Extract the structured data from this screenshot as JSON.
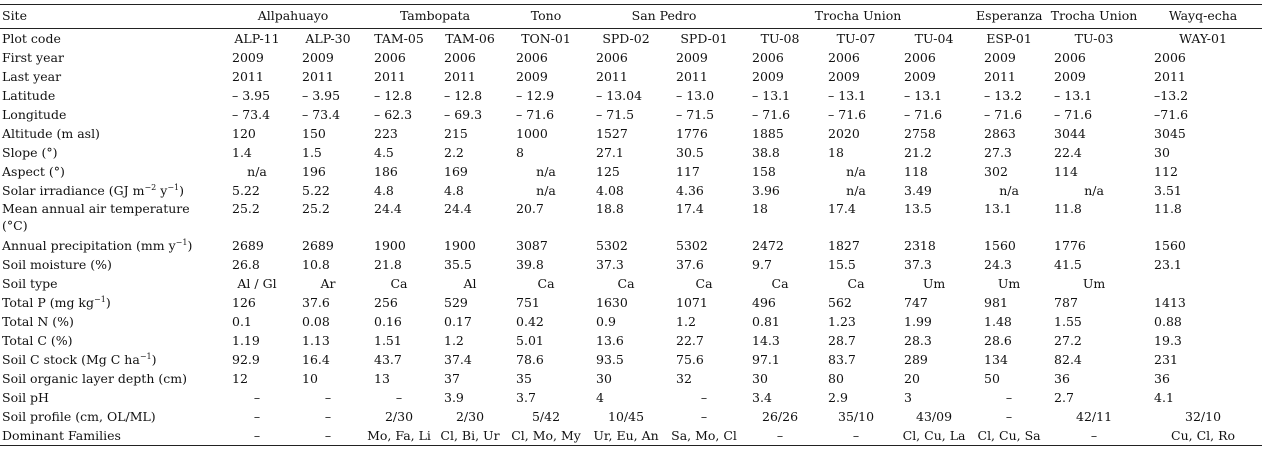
{
  "table": {
    "site_header": "Site",
    "site_groups": [
      {
        "name": "Allpahuayo",
        "span": 2
      },
      {
        "name": "Tambopata",
        "span": 2
      },
      {
        "name": "Tono",
        "span": 1
      },
      {
        "name": "San Pedro",
        "span": 2
      },
      {
        "name": "Trocha Union",
        "span": 3
      },
      {
        "name": "Esperanza",
        "span": 1
      },
      {
        "name": "Trocha Union",
        "span": 1
      },
      {
        "name": "Wayq-echa",
        "span": 1
      }
    ],
    "rows": [
      {
        "label": "Plot code",
        "values": [
          "ALP-11",
          "ALP-30",
          "TAM-05",
          "TAM-06",
          "TON-01",
          "SPD-02",
          "SPD-01",
          "TU-08",
          "TU-07",
          "TU-04",
          "ESP-01",
          "TU-03",
          "WAY-01"
        ]
      },
      {
        "label": "First year",
        "values": [
          "2009",
          "2009",
          "2006",
          "2006",
          "2006",
          "2006",
          "2009",
          "2006",
          "2006",
          "2006",
          "2009",
          "2006",
          "2006"
        ]
      },
      {
        "label": "Last year",
        "values": [
          "2011",
          "2011",
          "2011",
          "2011",
          "2009",
          "2011",
          "2011",
          "2009",
          "2009",
          "2009",
          "2011",
          "2009",
          "2011"
        ]
      },
      {
        "label": "Latitude",
        "values": [
          "– 3.95",
          "– 3.95",
          "– 12.8",
          "– 12.8",
          "– 12.9",
          "– 13.04",
          "– 13.0",
          "– 13.1",
          "– 13.1",
          "– 13.1",
          "– 13.2",
          "– 13.1",
          "–13.2"
        ]
      },
      {
        "label": "Longitude",
        "values": [
          "– 73.4",
          "– 73.4",
          "– 62.3",
          "– 69.3",
          "– 71.6",
          "– 71.5",
          "– 71.5",
          "– 71.6",
          "– 71.6",
          "– 71.6",
          "– 71.6",
          "– 71.6",
          "–71.6"
        ]
      },
      {
        "label": "Altitude (m asl)",
        "values": [
          "120",
          "150",
          "223",
          "215",
          "1000",
          "1527",
          "1776",
          "1885",
          "2020",
          "2758",
          "2863",
          "3044",
          "3045"
        ]
      },
      {
        "label": "Slope (°)",
        "values": [
          "1.4",
          "1.5",
          "4.5",
          "2.2",
          "8",
          "27.1",
          "30.5",
          "38.8",
          "18",
          "21.2",
          "27.3",
          "22.4",
          "30"
        ]
      },
      {
        "label": "Aspect (°)",
        "values": [
          "n/a",
          "196",
          "186",
          "169",
          "n/a",
          "125",
          "117",
          "158",
          "n/a",
          "118",
          "302",
          "114",
          "112"
        ]
      },
      {
        "label_pre": "Solar irradiance (GJ m",
        "label_sup1": "−2",
        "label_mid": " y",
        "label_sup2": "−1",
        "label_post": ")",
        "values": [
          "5.22",
          "5.22",
          "4.8",
          "4.8",
          "n/a",
          "4.08",
          "4.36",
          "3.96",
          "n/a",
          "3.49",
          "n/a",
          "n/a",
          "3.51"
        ]
      },
      {
        "label": "Mean annual air temperature",
        "label2": "(°C)",
        "values": [
          "25.2",
          "25.2",
          "24.4",
          "24.4",
          "20.7",
          "18.8",
          "17.4",
          "18",
          "17.4",
          "13.5",
          "13.1",
          "11.8",
          "11.8"
        ]
      },
      {
        "label_pre": "Annual precipitation (mm y",
        "label_sup1": "−1",
        "label_post": ")",
        "values": [
          "2689",
          "2689",
          "1900",
          "1900",
          "3087",
          "5302",
          "5302",
          "2472",
          "1827",
          "2318",
          "1560",
          "1776",
          "1560"
        ]
      },
      {
        "label": "Soil moisture (%)",
        "values": [
          "26.8",
          "10.8",
          "21.8",
          "35.5",
          "39.8",
          "37.3",
          "37.6",
          "9.7",
          "15.5",
          "37.3",
          "24.3",
          "41.5",
          "23.1"
        ]
      },
      {
        "label": "Soil type",
        "values": [
          "Al / Gl",
          "Ar",
          "Ca",
          "Al",
          "Ca",
          "Ca",
          "Ca",
          "Ca",
          "Ca",
          "Um",
          "Um",
          "Um",
          ""
        ]
      },
      {
        "label_pre": "Total P (mg kg",
        "label_sup1": "−1",
        "label_post": ")",
        "values": [
          "126",
          "37.6",
          "256",
          "529",
          "751",
          "1630",
          "1071",
          "496",
          "562",
          "747",
          "981",
          "787",
          "1413"
        ]
      },
      {
        "label": "Total N (%)",
        "values": [
          "0.1",
          "0.08",
          "0.16",
          "0.17",
          "0.42",
          "0.9",
          "1.2",
          "0.81",
          "1.23",
          "1.99",
          "1.48",
          "1.55",
          "0.88"
        ]
      },
      {
        "label": "Total C (%)",
        "values": [
          "1.19",
          "1.13",
          "1.51",
          "1.2",
          "5.01",
          "13.6",
          "22.7",
          "14.3",
          "28.7",
          "28.3",
          "28.6",
          "27.2",
          "19.3"
        ]
      },
      {
        "label_pre": "Soil C stock (Mg C ha",
        "label_sup1": "−1",
        "label_post": ")",
        "values": [
          "92.9",
          "16.4",
          "43.7",
          "37.4",
          "78.6",
          "93.5",
          "75.6",
          "97.1",
          "83.7",
          "289",
          "134",
          "82.4",
          "231"
        ]
      },
      {
        "label": "Soil organic layer depth (cm)",
        "values": [
          "12",
          "10",
          "13",
          "37",
          "35",
          "30",
          "32",
          "30",
          "80",
          "20",
          "50",
          "36",
          "36"
        ]
      },
      {
        "label": "Soil pH",
        "values": [
          "–",
          "–",
          "–",
          "3.9",
          "3.7",
          "4",
          "–",
          "3.4",
          "2.9",
          "3",
          "–",
          "2.7",
          "4.1"
        ]
      },
      {
        "label": "Soil profile (cm, OL/ML)",
        "values": [
          "–",
          "–",
          "2/30",
          "2/30",
          "5/42",
          "10/45",
          "–",
          "26/26",
          "35/10",
          "43/09",
          "–",
          "42/11",
          "32/10"
        ]
      },
      {
        "label": "Dominant Families",
        "values": [
          "–",
          "–",
          "Mo, Fa, Li",
          "Cl, Bi, Ur",
          "Cl, Mo, My",
          "Ur, Eu, An",
          "Sa, Mo, Cl",
          "–",
          "–",
          "Cl, Cu, La",
          "Cl, Cu, Sa",
          "–",
          "Cu, Cl, Ro"
        ]
      }
    ]
  }
}
